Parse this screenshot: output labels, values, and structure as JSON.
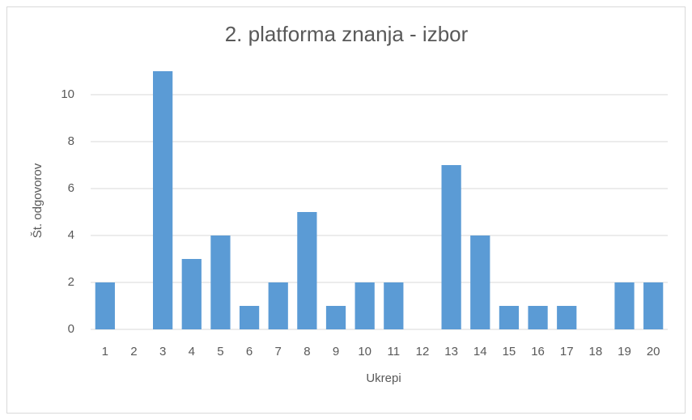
{
  "chart_data": {
    "type": "bar",
    "title": "2. platforma znanja - izbor",
    "x_label": "Ukrepi",
    "y_label": "Št. odgovorov",
    "categories": [
      "1",
      "2",
      "3",
      "4",
      "5",
      "6",
      "7",
      "8",
      "9",
      "10",
      "11",
      "12",
      "13",
      "14",
      "15",
      "16",
      "17",
      "18",
      "19",
      "20"
    ],
    "values": [
      2,
      0,
      11,
      3,
      4,
      1,
      2,
      5,
      1,
      2,
      2,
      0,
      7,
      4,
      1,
      1,
      1,
      0,
      2,
      2
    ],
    "color": "#5b9bd5",
    "ylim": [
      0,
      11
    ],
    "yticks": [
      0,
      2,
      4,
      6,
      8,
      10
    ],
    "grid": true
  }
}
